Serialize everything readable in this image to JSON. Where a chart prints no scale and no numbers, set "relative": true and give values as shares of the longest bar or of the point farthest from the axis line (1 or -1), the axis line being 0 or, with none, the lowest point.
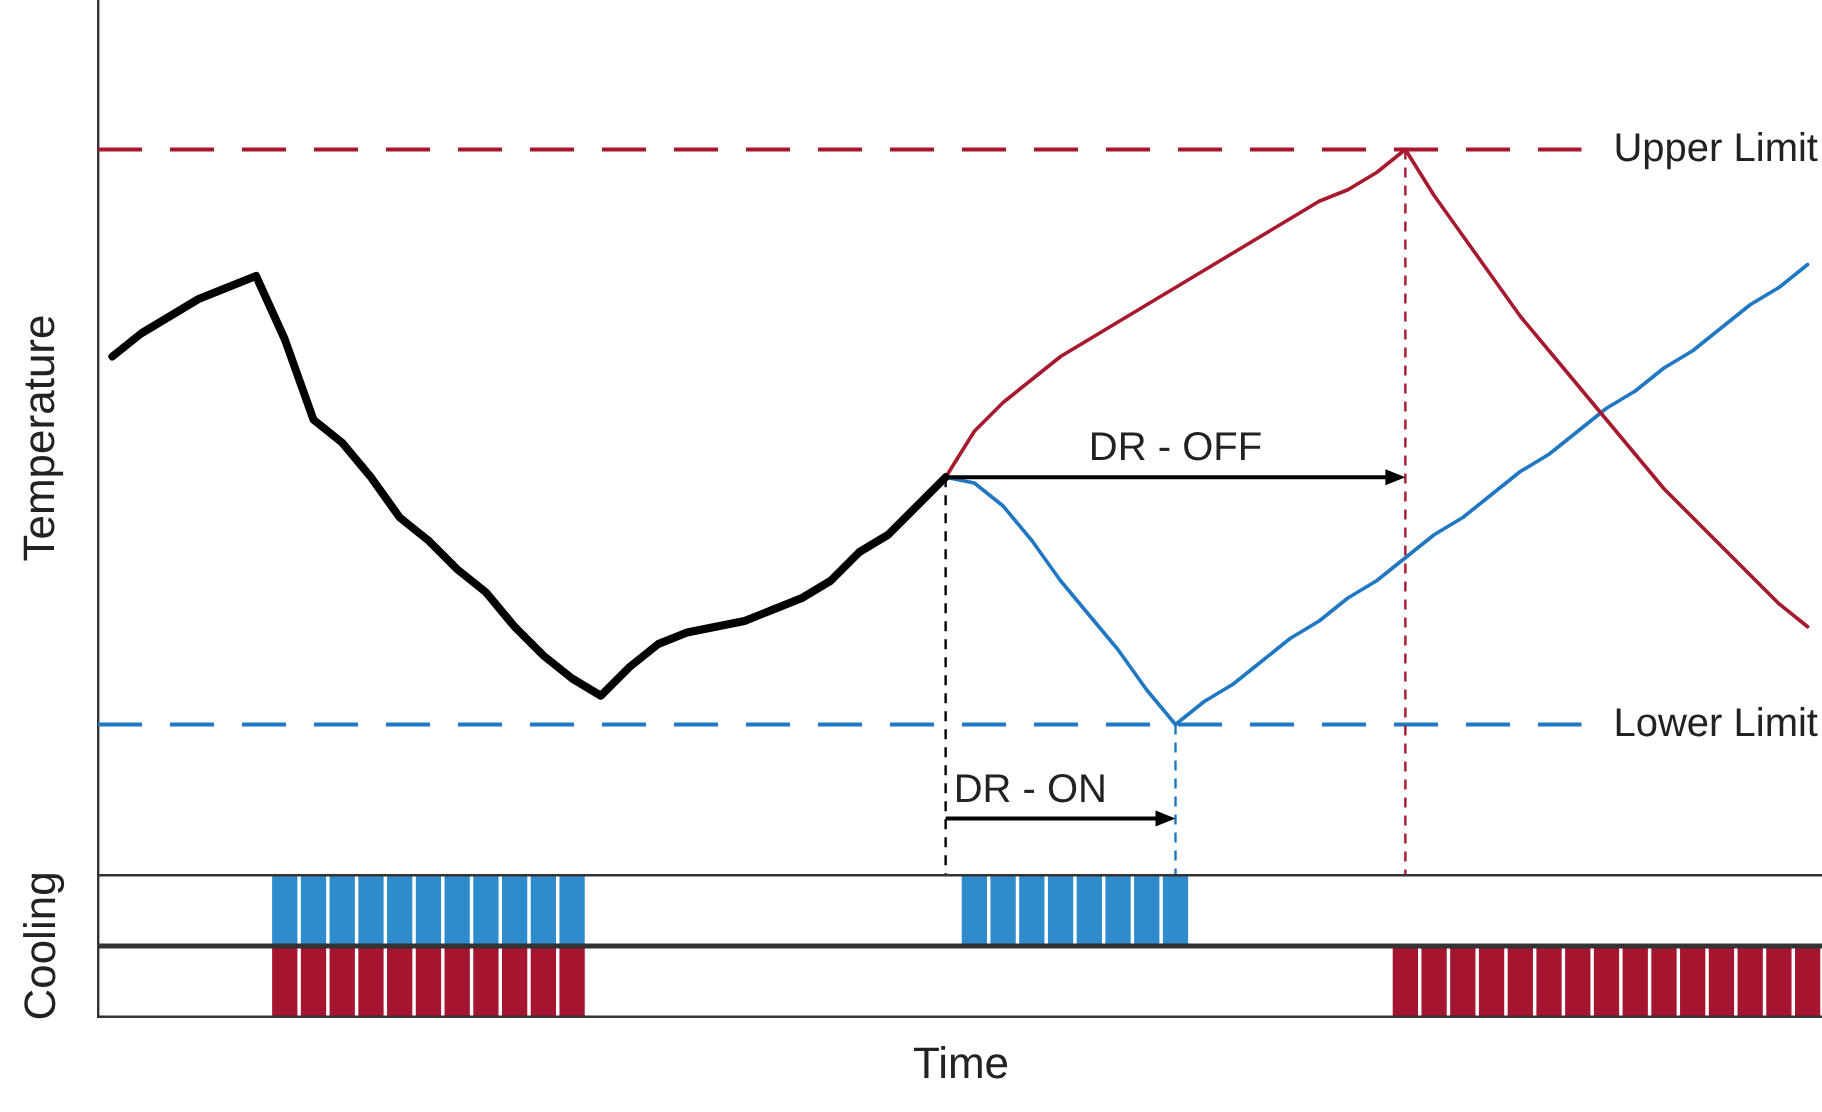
{
  "chart_data": [
    {
      "type": "line",
      "relative": true,
      "ylabel": "Temperature",
      "categories": [
        null,
        null,
        null,
        null,
        null,
        null,
        null,
        null,
        null,
        null,
        null,
        null,
        null,
        null,
        null,
        null,
        null,
        null,
        null,
        null,
        null,
        null,
        null,
        null,
        null,
        null,
        null,
        null,
        null,
        null,
        null,
        null,
        null,
        null,
        null,
        null,
        null,
        null,
        null,
        null,
        null,
        null,
        null,
        null,
        null,
        null,
        null,
        null,
        null,
        null,
        null,
        null,
        null,
        null,
        null,
        null,
        null,
        null,
        null,
        null
      ],
      "series": [
        {
          "color": "#000000",
          "values": [
            0.64,
            0.68,
            0.71,
            0.74,
            0.76,
            0.78,
            0.67,
            0.53,
            0.49,
            0.43,
            0.36,
            0.32,
            0.27,
            0.23,
            0.17,
            0.12,
            0.08,
            0.05,
            0.1,
            0.14,
            0.16,
            0.17,
            0.18,
            0.2,
            0.22,
            0.25,
            0.3,
            0.33,
            0.38,
            0.43,
            null,
            null,
            null,
            null,
            null,
            null,
            null,
            null,
            null,
            null,
            null,
            null,
            null,
            null,
            null,
            null,
            null,
            null,
            null,
            null,
            null,
            null,
            null,
            null,
            null,
            null,
            null,
            null,
            null,
            null
          ]
        },
        {
          "color": "#a6192e",
          "values": [
            null,
            null,
            null,
            null,
            null,
            null,
            null,
            null,
            null,
            null,
            null,
            null,
            null,
            null,
            null,
            null,
            null,
            null,
            null,
            null,
            null,
            null,
            null,
            null,
            null,
            null,
            null,
            null,
            null,
            0.43,
            0.51,
            0.56,
            0.6,
            0.64,
            0.67,
            0.7,
            0.73,
            0.76,
            0.79,
            0.82,
            0.85,
            0.88,
            0.91,
            0.93,
            0.96,
            1,
            0.92,
            0.85,
            0.78,
            0.71,
            0.65,
            0.59,
            0.53,
            0.47,
            0.41,
            0.36,
            0.31,
            0.26,
            0.21,
            0.17
          ]
        },
        {
          "color": "#1f78c1",
          "values": [
            null,
            null,
            null,
            null,
            null,
            null,
            null,
            null,
            null,
            null,
            null,
            null,
            null,
            null,
            null,
            null,
            null,
            null,
            null,
            null,
            null,
            null,
            null,
            null,
            null,
            null,
            null,
            null,
            null,
            0.43,
            0.42,
            0.38,
            0.32,
            0.25,
            0.19,
            0.13,
            0.06,
            0,
            0.04,
            0.07,
            0.11,
            0.15,
            0.18,
            0.22,
            0.25,
            0.29,
            0.33,
            0.36,
            0.4,
            0.44,
            0.47,
            0.51,
            0.55,
            0.58,
            0.62,
            0.65,
            0.69,
            0.73,
            0.76,
            0.8
          ]
        }
      ],
      "ref_lines": [
        {
          "axis": "y",
          "value": 1,
          "label": "Upper Limit",
          "color": "#a6192e",
          "line_style": "dashed"
        },
        {
          "axis": "y",
          "value": 0,
          "label": "Lower Limit",
          "color": "#1f78c1",
          "line_style": "dashed"
        }
      ],
      "annotations": [
        "DR - OFF",
        "DR - ON"
      ]
    },
    {
      "type": "bar",
      "relative": true,
      "ylabel": "Cooling",
      "categories": [
        null,
        null,
        null,
        null,
        null,
        null,
        null,
        null,
        null,
        null,
        null,
        null,
        null,
        null,
        null,
        null,
        null,
        null,
        null,
        null,
        null,
        null,
        null,
        null,
        null,
        null,
        null,
        null,
        null,
        null,
        null,
        null,
        null,
        null,
        null,
        null,
        null,
        null,
        null,
        null,
        null,
        null,
        null,
        null,
        null,
        null,
        null,
        null,
        null,
        null,
        null,
        null,
        null,
        null,
        null,
        null,
        null,
        null,
        null,
        null
      ],
      "series": [
        {
          "color": "#2e8bcc",
          "values": [
            null,
            null,
            null,
            null,
            null,
            null,
            1,
            1,
            1,
            1,
            1,
            1,
            1,
            1,
            1,
            1,
            1,
            null,
            null,
            null,
            null,
            null,
            null,
            null,
            null,
            null,
            null,
            null,
            null,
            null,
            1,
            1,
            1,
            1,
            1,
            1,
            1,
            1,
            null,
            null,
            null,
            null,
            null,
            null,
            null,
            null,
            null,
            null,
            null,
            null,
            null,
            null,
            null,
            null,
            null,
            null,
            null,
            null,
            null,
            null
          ]
        }
      ]
    },
    {
      "type": "bar",
      "relative": true,
      "xlabel": "Time",
      "categories": [
        null,
        null,
        null,
        null,
        null,
        null,
        null,
        null,
        null,
        null,
        null,
        null,
        null,
        null,
        null,
        null,
        null,
        null,
        null,
        null,
        null,
        null,
        null,
        null,
        null,
        null,
        null,
        null,
        null,
        null,
        null,
        null,
        null,
        null,
        null,
        null,
        null,
        null,
        null,
        null,
        null,
        null,
        null,
        null,
        null,
        null,
        null,
        null,
        null,
        null,
        null,
        null,
        null,
        null,
        null,
        null,
        null,
        null,
        null,
        null
      ],
      "series": [
        {
          "color": "#a51530",
          "values": [
            null,
            null,
            null,
            null,
            null,
            null,
            1,
            1,
            1,
            1,
            1,
            1,
            1,
            1,
            1,
            1,
            1,
            null,
            null,
            null,
            null,
            null,
            null,
            null,
            null,
            null,
            null,
            null,
            null,
            null,
            null,
            null,
            null,
            null,
            null,
            null,
            null,
            null,
            null,
            null,
            null,
            null,
            null,
            null,
            null,
            1,
            1,
            1,
            1,
            1,
            1,
            1,
            1,
            1,
            1,
            1,
            1,
            1,
            1,
            1
          ]
        }
      ]
    }
  ]
}
